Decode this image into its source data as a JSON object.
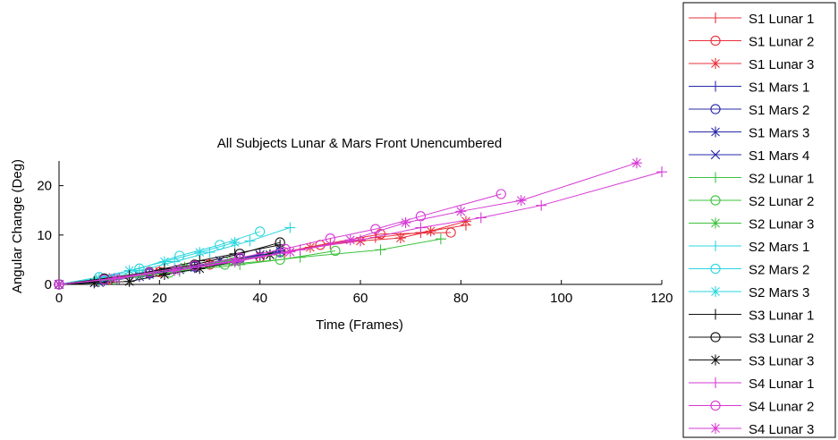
{
  "chart_data": {
    "type": "line",
    "title": "All Subjects Lunar & Mars Front Unencumbered",
    "xlabel": "Time (Frames)",
    "ylabel": "Angular Change (Deg)",
    "xlim": [
      0,
      120
    ],
    "ylim": [
      0,
      25
    ],
    "xticks": [
      0,
      20,
      40,
      60,
      80,
      100,
      120
    ],
    "yticks": [
      0,
      10,
      20
    ],
    "grid": false,
    "legend_position": "outside-right",
    "series": [
      {
        "name": "S1 Lunar 1",
        "color": "#e8303a",
        "marker": "plus",
        "points": [
          [
            0,
            0
          ],
          [
            9,
            0.8
          ],
          [
            18,
            2
          ],
          [
            27,
            3.5
          ],
          [
            36,
            5
          ],
          [
            45,
            6.5
          ],
          [
            54,
            8.2
          ],
          [
            63,
            9.5
          ],
          [
            72,
            10.5
          ],
          [
            81,
            12
          ]
        ]
      },
      {
        "name": "S1 Lunar 2",
        "color": "#e8303a",
        "marker": "circle",
        "points": [
          [
            0,
            0
          ],
          [
            10,
            1
          ],
          [
            20,
            2.5
          ],
          [
            30,
            4
          ],
          [
            40,
            5.5
          ],
          [
            52,
            8
          ],
          [
            64,
            10.2
          ],
          [
            78,
            10.5
          ]
        ]
      },
      {
        "name": "S1 Lunar 3",
        "color": "#e8303a",
        "marker": "star",
        "points": [
          [
            0,
            0
          ],
          [
            10,
            1.2
          ],
          [
            20,
            2.6
          ],
          [
            30,
            4.2
          ],
          [
            40,
            5.8
          ],
          [
            50,
            7.5
          ],
          [
            60,
            8.8
          ],
          [
            68,
            9.4
          ],
          [
            74,
            10.8
          ],
          [
            81,
            12.8
          ]
        ]
      },
      {
        "name": "S1 Mars 1",
        "color": "#2a2aa8",
        "marker": "plus",
        "points": [
          [
            0,
            0
          ],
          [
            8,
            0.6
          ],
          [
            16,
            1.6
          ],
          [
            24,
            3
          ],
          [
            32,
            4.5
          ],
          [
            40,
            6
          ]
        ]
      },
      {
        "name": "S1 Mars 2",
        "color": "#2a2aa8",
        "marker": "circle",
        "points": [
          [
            0,
            0
          ],
          [
            9,
            1
          ],
          [
            18,
            2.2
          ],
          [
            27,
            3.6
          ],
          [
            36,
            5.2
          ],
          [
            44,
            6.5
          ]
        ]
      },
      {
        "name": "S1 Mars 3",
        "color": "#2a2aa8",
        "marker": "star",
        "points": [
          [
            0,
            0
          ],
          [
            9,
            0.8
          ],
          [
            18,
            2
          ],
          [
            27,
            3.4
          ],
          [
            36,
            5
          ],
          [
            44,
            6.8
          ]
        ]
      },
      {
        "name": "S1 Mars 4",
        "color": "#2a2aa8",
        "marker": "x",
        "points": [
          [
            0,
            0
          ],
          [
            8,
            0.4
          ],
          [
            16,
            1.6
          ],
          [
            24,
            3
          ],
          [
            32,
            4.8
          ],
          [
            40,
            6
          ]
        ]
      },
      {
        "name": "S2 Lunar 1",
        "color": "#3ec23e",
        "marker": "plus",
        "points": [
          [
            0,
            0
          ],
          [
            12,
            1.2
          ],
          [
            24,
            2.6
          ],
          [
            36,
            4
          ],
          [
            48,
            5.5
          ],
          [
            64,
            7
          ],
          [
            76,
            9.2
          ]
        ]
      },
      {
        "name": "S2 Lunar 2",
        "color": "#3ec23e",
        "marker": "circle",
        "points": [
          [
            0,
            0
          ],
          [
            11,
            1
          ],
          [
            22,
            2.4
          ],
          [
            33,
            4
          ],
          [
            44,
            5
          ],
          [
            55,
            6.8
          ]
        ]
      },
      {
        "name": "S2 Lunar 3",
        "color": "#3ec23e",
        "marker": "star",
        "points": [
          [
            0,
            0
          ],
          [
            8,
            0.8
          ],
          [
            16,
            2
          ],
          [
            25,
            3.5
          ],
          [
            34,
            4.8
          ],
          [
            42,
            6
          ]
        ]
      },
      {
        "name": "S2 Mars 1",
        "color": "#2bd6e0",
        "marker": "plus",
        "points": [
          [
            0,
            0
          ],
          [
            8,
            1.2
          ],
          [
            16,
            2.8
          ],
          [
            23,
            4.6
          ],
          [
            30,
            6.5
          ],
          [
            38,
            8.8
          ],
          [
            46,
            11.5
          ]
        ]
      },
      {
        "name": "S2 Mars 2",
        "color": "#2bd6e0",
        "marker": "circle",
        "points": [
          [
            0,
            0
          ],
          [
            8,
            1.5
          ],
          [
            16,
            3.2
          ],
          [
            24,
            5.8
          ],
          [
            32,
            8
          ],
          [
            40,
            10.7
          ]
        ]
      },
      {
        "name": "S2 Mars 3",
        "color": "#2bd6e0",
        "marker": "star",
        "points": [
          [
            0,
            0
          ],
          [
            8,
            1.2
          ],
          [
            14,
            2.8
          ],
          [
            21,
            4.6
          ],
          [
            28,
            6.5
          ],
          [
            35,
            8.5
          ]
        ]
      },
      {
        "name": "S3 Lunar 1",
        "color": "#111111",
        "marker": "plus",
        "points": [
          [
            0,
            0
          ],
          [
            7,
            0.6
          ],
          [
            14,
            1.8
          ],
          [
            21,
            3.2
          ],
          [
            28,
            4.8
          ],
          [
            35,
            6.2
          ],
          [
            44,
            8
          ]
        ]
      },
      {
        "name": "S3 Lunar 2",
        "color": "#111111",
        "marker": "circle",
        "points": [
          [
            0,
            0
          ],
          [
            9,
            1.2
          ],
          [
            18,
            2.5
          ],
          [
            27,
            4
          ],
          [
            36,
            6.2
          ],
          [
            44,
            8.5
          ]
        ]
      },
      {
        "name": "S3 Lunar 3",
        "color": "#111111",
        "marker": "star",
        "points": [
          [
            0,
            0
          ],
          [
            7,
            0.3
          ],
          [
            14,
            0.6
          ],
          [
            21,
            2
          ],
          [
            28,
            3.2
          ],
          [
            35,
            4.6
          ],
          [
            42,
            6
          ]
        ]
      },
      {
        "name": "S4 Lunar 1",
        "color": "#d63ad6",
        "marker": "plus",
        "points": [
          [
            0,
            0
          ],
          [
            12,
            1.2
          ],
          [
            24,
            3
          ],
          [
            36,
            5
          ],
          [
            48,
            7
          ],
          [
            60,
            9
          ],
          [
            72,
            11.5
          ],
          [
            84,
            13.5
          ],
          [
            96,
            16
          ],
          [
            120,
            22.8
          ]
        ]
      },
      {
        "name": "S4 Lunar 2",
        "color": "#d63ad6",
        "marker": "circle",
        "points": [
          [
            0,
            0
          ],
          [
            9,
            1
          ],
          [
            18,
            2.4
          ],
          [
            27,
            3.8
          ],
          [
            36,
            5.4
          ],
          [
            45,
            7.2
          ],
          [
            54,
            9.3
          ],
          [
            63,
            11.2
          ],
          [
            72,
            13.8
          ],
          [
            88,
            18.3
          ]
        ]
      },
      {
        "name": "S4 Lunar 3",
        "color": "#d63ad6",
        "marker": "star",
        "points": [
          [
            0,
            0
          ],
          [
            11,
            1.2
          ],
          [
            23,
            2.8
          ],
          [
            35,
            4.6
          ],
          [
            46,
            6.6
          ],
          [
            58,
            9
          ],
          [
            69,
            12.5
          ],
          [
            80,
            14.8
          ],
          [
            92,
            17
          ],
          [
            115,
            24.6
          ]
        ]
      }
    ]
  }
}
